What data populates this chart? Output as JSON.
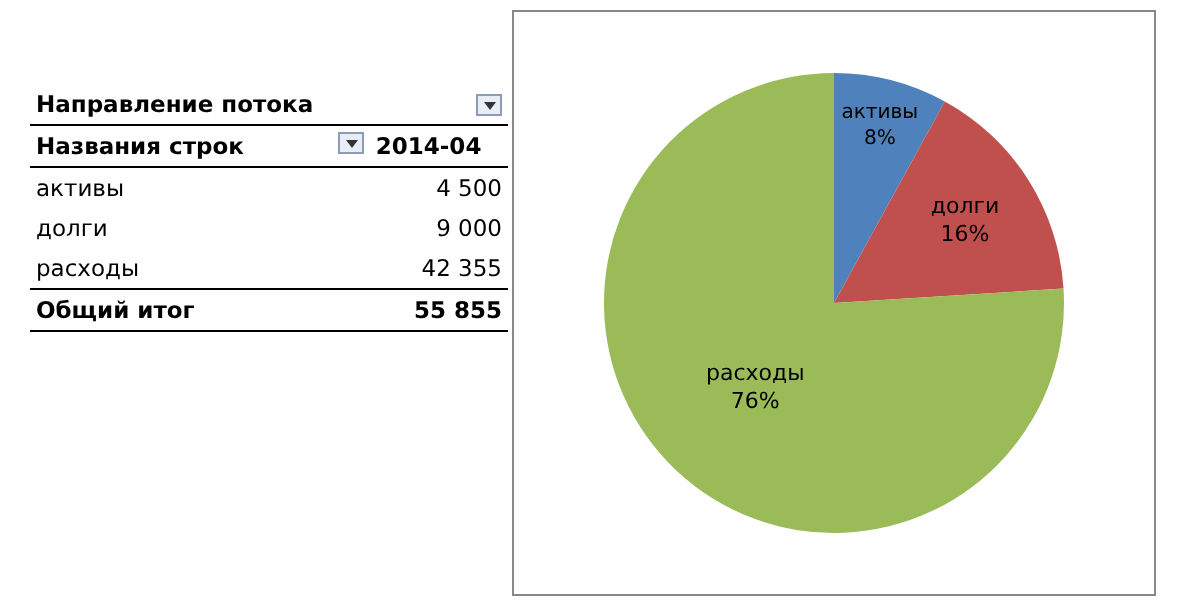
{
  "chart_data": {
    "type": "pie",
    "categories": [
      "активы",
      "долги",
      "расходы"
    ],
    "values": [
      8,
      16,
      76
    ],
    "colors": [
      "#4f81bd",
      "#c0504d",
      "#9bbb59"
    ],
    "value_labels": [
      "8%",
      "16%",
      "76%"
    ],
    "totals": [
      "55 855"
    ],
    "legend": false,
    "annotations": [
      "Направление потока",
      "Названия строк",
      "2014-04",
      "Общий итог",
      "4 500",
      "9 000",
      "42 355"
    ]
  }
}
